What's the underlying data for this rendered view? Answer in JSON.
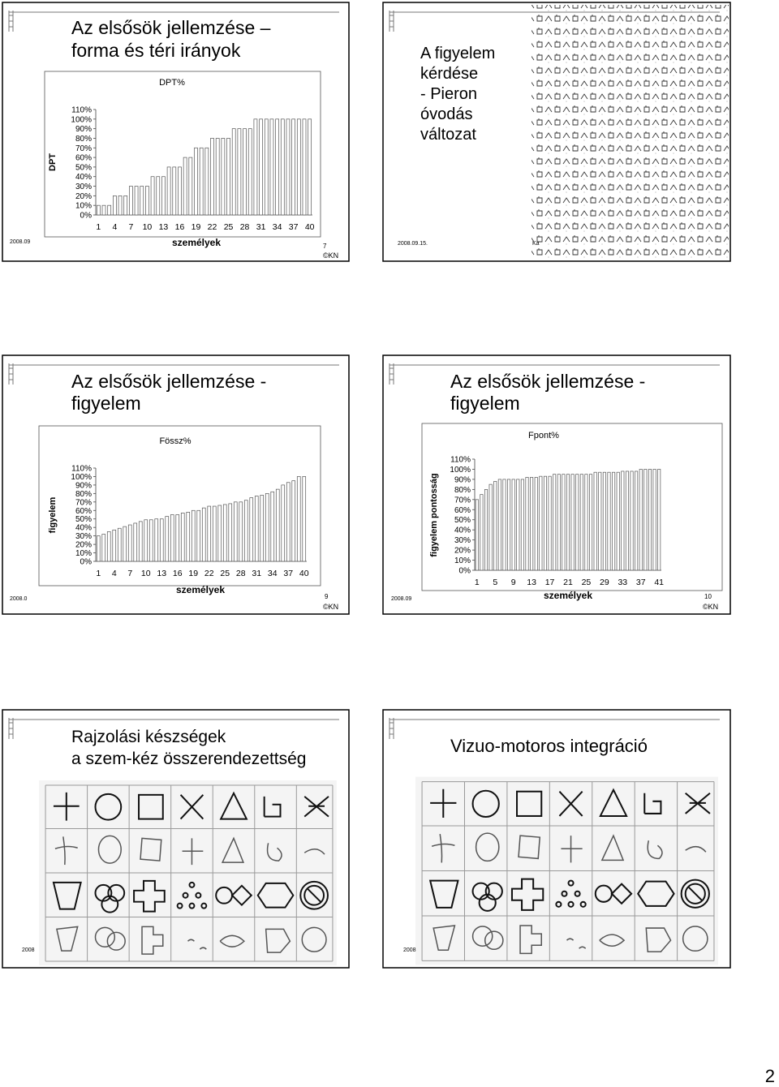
{
  "slides": [
    {
      "title_lines": [
        "Az elsősök jellemzése –",
        "forma és téri irányok"
      ],
      "date": "2008.09",
      "slide_number": "7",
      "copyright": "©KN",
      "chart": {
        "type": "bar",
        "title": "DPT%",
        "y_label": "DPT",
        "x_label": "személyek",
        "color": "#ffffff",
        "edge_color": "#555555",
        "categories": [
          1,
          null,
          null,
          4,
          null,
          null,
          7,
          null,
          null,
          10,
          null,
          null,
          13,
          null,
          null,
          16,
          null,
          null,
          19,
          null,
          null,
          22,
          null,
          null,
          25,
          null,
          null,
          28,
          null,
          null,
          31,
          null,
          null,
          34,
          null,
          null,
          37,
          null,
          null,
          40
        ],
        "values": [
          10,
          10,
          10,
          20,
          20,
          20,
          30,
          30,
          30,
          30,
          40,
          40,
          40,
          50,
          50,
          50,
          60,
          60,
          70,
          70,
          70,
          80,
          80,
          80,
          80,
          90,
          90,
          90,
          90,
          100,
          100,
          100,
          100,
          100,
          100,
          100,
          100,
          100,
          100,
          100
        ],
        "ylim": [
          0,
          110
        ],
        "yticks": [
          {
            "value": 0,
            "label": "0%"
          },
          {
            "value": 10,
            "label": "10%"
          },
          {
            "value": 20,
            "label": "20%"
          },
          {
            "value": 30,
            "label": "30%"
          },
          {
            "value": 40,
            "label": "40%"
          },
          {
            "value": 50,
            "label": "50%"
          },
          {
            "value": 60,
            "label": "60%"
          },
          {
            "value": 70,
            "label": "70%"
          },
          {
            "value": 80,
            "label": "80%"
          },
          {
            "value": 90,
            "label": "90%"
          },
          {
            "value": 100,
            "label": "100%"
          },
          {
            "value": 110,
            "label": "110%"
          }
        ]
      }
    },
    {
      "title_lines": [
        "A figyelem",
        "kérdése",
        "- Pieron",
        "óvodás",
        "változat"
      ],
      "date": "2008.09.15.",
      "extra_footer": "Ka"
    },
    {
      "title_lines": [
        "Az elsősök jellemzése -",
        "figyelem"
      ],
      "date": "2008.0",
      "slide_number": "9",
      "copyright": "©KN",
      "chart": {
        "type": "bar",
        "title": "Fössz%",
        "y_label": "figyelem",
        "x_label": "személyek",
        "color": "#ffffff",
        "edge_color": "#555555",
        "categories": [
          1,
          null,
          null,
          4,
          null,
          null,
          7,
          null,
          null,
          10,
          null,
          null,
          13,
          null,
          null,
          16,
          null,
          null,
          19,
          null,
          null,
          22,
          null,
          null,
          25,
          null,
          null,
          28,
          null,
          null,
          31,
          null,
          null,
          34,
          null,
          null,
          37,
          null,
          null,
          40
        ],
        "values": [
          30,
          32,
          35,
          37,
          39,
          41,
          43,
          45,
          47,
          49,
          49,
          50,
          50,
          53,
          55,
          55,
          57,
          58,
          60,
          60,
          63,
          65,
          65,
          66,
          67,
          68,
          70,
          70,
          72,
          75,
          77,
          78,
          80,
          82,
          85,
          90,
          93,
          95,
          100,
          100
        ],
        "ylim": [
          0,
          110
        ],
        "yticks": [
          {
            "value": 0,
            "label": "0%"
          },
          {
            "value": 10,
            "label": "10%"
          },
          {
            "value": 20,
            "label": "20%"
          },
          {
            "value": 30,
            "label": "30%"
          },
          {
            "value": 40,
            "label": "40%"
          },
          {
            "value": 50,
            "label": "50%"
          },
          {
            "value": 60,
            "label": "60%"
          },
          {
            "value": 70,
            "label": "70%"
          },
          {
            "value": 80,
            "label": "80%"
          },
          {
            "value": 90,
            "label": "90%"
          },
          {
            "value": 100,
            "label": "100%"
          },
          {
            "value": 110,
            "label": "110%"
          }
        ]
      }
    },
    {
      "title_lines": [
        "Az elsősök jellemzése -",
        "figyelem"
      ],
      "date": "2008.09",
      "slide_number": "10",
      "copyright": "©KN",
      "chart": {
        "type": "bar",
        "title": "Fpont%",
        "y_label": "figyelem pontosság",
        "x_label": "személyek",
        "color": "#ffffff",
        "edge_color": "#555555",
        "categories": [
          1,
          null,
          null,
          null,
          5,
          null,
          null,
          null,
          9,
          null,
          null,
          null,
          13,
          null,
          null,
          null,
          17,
          null,
          null,
          null,
          21,
          null,
          null,
          null,
          25,
          null,
          null,
          null,
          29,
          null,
          null,
          null,
          33,
          null,
          null,
          null,
          37,
          null,
          null,
          null,
          41
        ],
        "values": [
          70,
          75,
          80,
          85,
          88,
          90,
          90,
          90,
          90,
          90,
          90,
          92,
          92,
          92,
          93,
          93,
          93,
          95,
          95,
          95,
          95,
          95,
          95,
          95,
          95,
          95,
          97,
          97,
          97,
          97,
          97,
          97,
          98,
          98,
          98,
          98,
          100,
          100,
          100,
          100,
          100
        ],
        "ylim": [
          0,
          110
        ],
        "yticks": [
          {
            "value": 0,
            "label": "0%"
          },
          {
            "value": 10,
            "label": "10%"
          },
          {
            "value": 20,
            "label": "20%"
          },
          {
            "value": 30,
            "label": "30%"
          },
          {
            "value": 40,
            "label": "40%"
          },
          {
            "value": 50,
            "label": "50%"
          },
          {
            "value": 60,
            "label": "60%"
          },
          {
            "value": 70,
            "label": "70%"
          },
          {
            "value": 80,
            "label": "80%"
          },
          {
            "value": 90,
            "label": "90%"
          },
          {
            "value": 100,
            "label": "100%"
          },
          {
            "value": 110,
            "label": "110%"
          }
        ]
      }
    },
    {
      "title_lines": [
        "Rajzolási készségek",
        "a szem-kéz összerendezettség"
      ],
      "date": "2008"
    },
    {
      "title_lines": [
        "Vizuo-motoros integráció"
      ],
      "date": "2008"
    }
  ],
  "page_number": "2"
}
